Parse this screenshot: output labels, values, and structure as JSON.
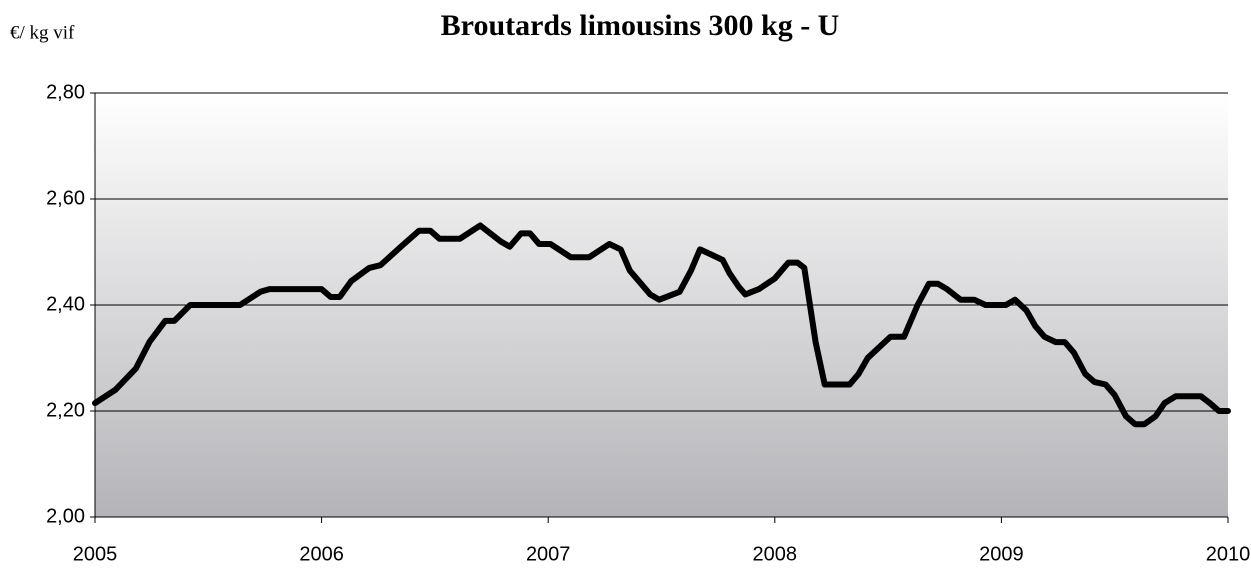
{
  "chart_data": {
    "type": "line",
    "title": "Broutards limousins 300 kg - U",
    "y_label": "€/ kg vif",
    "series": [
      {
        "name": "Broutards limousins 300 kg - U",
        "color": "#000000",
        "x": [
          2005.0,
          2005.09,
          2005.18,
          2005.24,
          2005.31,
          2005.35,
          2005.42,
          2005.64,
          2005.73,
          2005.77,
          2006.0,
          2006.04,
          2006.08,
          2006.13,
          2006.21,
          2006.26,
          2006.35,
          2006.43,
          2006.48,
          2006.52,
          2006.61,
          2006.7,
          2006.79,
          2006.83,
          2006.88,
          2006.92,
          2006.96,
          2007.01,
          2007.1,
          2007.18,
          2007.27,
          2007.32,
          2007.36,
          2007.45,
          2007.49,
          2007.58,
          2007.63,
          2007.67,
          2007.72,
          2007.77,
          2007.8,
          2007.84,
          2007.87,
          2007.93,
          2008.0,
          2008.06,
          2008.1,
          2008.13,
          2008.18,
          2008.22,
          2008.33,
          2008.37,
          2008.41,
          2008.46,
          2008.51,
          2008.57,
          2008.63,
          2008.68,
          2008.72,
          2008.76,
          2008.82,
          2008.88,
          2008.93,
          2008.98,
          2009.02,
          2009.06,
          2009.11,
          2009.15,
          2009.19,
          2009.24,
          2009.28,
          2009.32,
          2009.37,
          2009.41,
          2009.46,
          2009.5,
          2009.55,
          2009.59,
          2009.63,
          2009.68,
          2009.72,
          2009.77,
          2009.88,
          2009.92,
          2009.96,
          2010.0
        ],
        "values": [
          2.215,
          2.24,
          2.28,
          2.33,
          2.37,
          2.37,
          2.4,
          2.4,
          2.425,
          2.43,
          2.43,
          2.415,
          2.415,
          2.445,
          2.47,
          2.475,
          2.51,
          2.54,
          2.54,
          2.525,
          2.525,
          2.55,
          2.52,
          2.51,
          2.535,
          2.535,
          2.515,
          2.515,
          2.49,
          2.49,
          2.515,
          2.505,
          2.465,
          2.42,
          2.41,
          2.425,
          2.465,
          2.505,
          2.495,
          2.485,
          2.46,
          2.435,
          2.42,
          2.43,
          2.45,
          2.48,
          2.48,
          2.47,
          2.33,
          2.25,
          2.25,
          2.27,
          2.3,
          2.32,
          2.34,
          2.34,
          2.4,
          2.44,
          2.44,
          2.43,
          2.41,
          2.41,
          2.4,
          2.4,
          2.4,
          2.41,
          2.39,
          2.36,
          2.34,
          2.33,
          2.33,
          2.31,
          2.27,
          2.255,
          2.25,
          2.23,
          2.19,
          2.175,
          2.175,
          2.19,
          2.215,
          2.228,
          2.228,
          2.215,
          2.2,
          2.2
        ]
      }
    ],
    "xlim": [
      2005,
      2010
    ],
    "xticks": [
      2005,
      2006,
      2007,
      2008,
      2009,
      2010
    ],
    "ylim": [
      2.0,
      2.8
    ],
    "yticks": [
      {
        "value": 2.0,
        "label": "2,00"
      },
      {
        "value": 2.2,
        "label": "2,20"
      },
      {
        "value": 2.4,
        "label": "2,40"
      },
      {
        "value": 2.6,
        "label": "2,60"
      },
      {
        "value": 2.8,
        "label": "2,80"
      }
    ],
    "grid": true
  }
}
